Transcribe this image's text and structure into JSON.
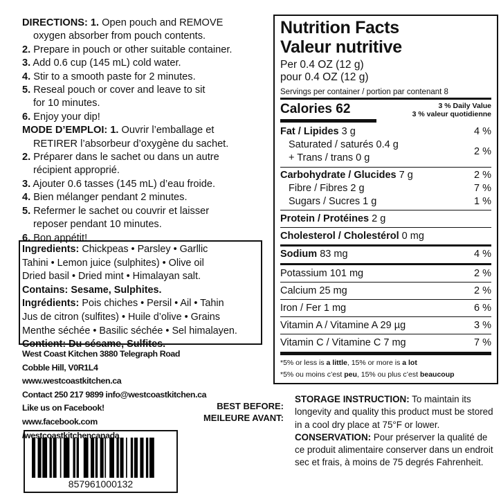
{
  "directions": {
    "en_label": "DIRECTIONS:",
    "en": [
      {
        "num": "1.",
        "text": "Open pouch and REMOVE",
        "cont": "oxygen absorber from pouch contents."
      },
      {
        "num": "2.",
        "text": "Prepare in pouch or other suitable container."
      },
      {
        "num": "3.",
        "text": "Add 0.6 cup (145 mL) cold water."
      },
      {
        "num": "4.",
        "text": "Stir to a smooth paste for 2 minutes."
      },
      {
        "num": "5.",
        "text": "Reseal pouch or cover and leave to sit",
        "cont": "for 10 minutes."
      },
      {
        "num": "6.",
        "text": "Enjoy your dip!"
      }
    ],
    "fr_label": "MODE D’EMPLOI:",
    "fr": [
      {
        "num": "1.",
        "text": "Ouvrir l’emballage et",
        "cont": "RETIRER l’absorbeur d’oxygène du sachet."
      },
      {
        "num": "2.",
        "text": "Préparer dans le sachet ou dans un autre",
        "cont": "récipient approprié."
      },
      {
        "num": "3.",
        "text": "Ajouter 0.6 tasses (145 mL) d’eau froide."
      },
      {
        "num": "4.",
        "text": "Bien mélanger pendant 2 minutes."
      },
      {
        "num": "5.",
        "text": "Refermer le sachet ou couvrir et laisser",
        "cont": "reposer pendant 10 minutes."
      },
      {
        "num": "6.",
        "text": "Bon appétit!"
      }
    ]
  },
  "ingredients": {
    "en_label": "Ingredients:",
    "en_lines": [
      "Chickpeas • Parsley • Garllic",
      "Tahini • Lemon juice (sulphites) • Olive oil",
      "Dried basil • Dried mint • Himalayan salt."
    ],
    "contains": "Contains: Sesame, Sulphites.",
    "fr_label": "Ingrédients:",
    "fr_lines": [
      "Pois chiches • Persil • Ail • Tahin",
      "Jus de citron (sulfites) • Huile d’olive • Grains",
      "Menthe séchée • Basilic séchée • Sel himalayen."
    ],
    "contient": "Contient: Du sésame, Sulfites."
  },
  "contact": [
    "West Coast Kitchen 3880 Telegraph Road",
    "Cobble Hill, V0R1L4",
    "www.westcoastkitchen.ca",
    "Contact 250 217 9899 info@westcoastkitchen.ca",
    "Like us on Facebook!",
    "www.facebook.com",
    "/westcoastkitchencanada"
  ],
  "best_before": {
    "en": "BEST BEFORE:",
    "fr": "MEILEURE AVANT:"
  },
  "barcode": {
    "number": "857961000132"
  },
  "nutrition": {
    "title_en": "Nutrition Facts",
    "title_fr": "Valeur nutritive",
    "per_en": "Per 0.4 OZ (12 g)",
    "per_fr": "pour 0.4 OZ (12 g)",
    "servings": "Servings per container / portion par contenant 8",
    "calories": "Calories 62",
    "dv_en": "3 % Daily Value",
    "dv_fr": "3 % valeur quotidienne",
    "fat": {
      "label": "Fat / Lipides",
      "amt": "3 g",
      "pct": "4 %"
    },
    "sat": "Saturated / saturés 0.4 g",
    "trans": "+ Trans / trans 0 g",
    "sat_pct": "2 %",
    "carb": {
      "label": "Carbohydrate / Glucides",
      "amt": "7 g",
      "pct": "2 %"
    },
    "fibre": {
      "label": "Fibre / Fibres 2 g",
      "pct": "7 %"
    },
    "sugars": {
      "label": "Sugars / Sucres 1 g",
      "pct": "1 %"
    },
    "protein": {
      "label": "Protein / Protéines",
      "amt": "2 g"
    },
    "cholesterol": {
      "label": "Cholesterol / Cholestérol",
      "amt": "0 mg"
    },
    "sodium": {
      "label": "Sodium",
      "amt": "83 mg",
      "pct": "4 %"
    },
    "minerals": [
      {
        "label": "Potassium 101 mg",
        "pct": "2 %"
      },
      {
        "label": "Calcium 25 mg",
        "pct": "2 %"
      },
      {
        "label": "Iron / Fer 1 mg",
        "pct": "6 %"
      },
      {
        "label": "Vitamin A / Vitamine A 29 µg",
        "pct": "3 %"
      },
      {
        "label": "Vitamin C / Vitamine C 7 mg",
        "pct": "7 %"
      }
    ],
    "foot_en": {
      "a": "*5% or less is ",
      "b": "a little",
      ",c": "",
      "c": ", 15% or more is ",
      "d": "a lot"
    },
    "foot_fr": {
      "a": "*5% ou moins c’est ",
      "b": "peu",
      "c": ", 15% ou plus c’est ",
      "d": "beaucoup"
    }
  },
  "storage": {
    "en_label": "STORAGE INSTRUCTION:",
    "en": "To maintain its longevity and quality this product must be stored in a cool dry place at 75°F or lower.",
    "fr_label": "CONSERVATION:",
    "fr": "Pour préserver la qualité de ce produit alimentaire conserver dans un endroit sec et frais, à moins de 75 degrés Fahrenheit."
  }
}
